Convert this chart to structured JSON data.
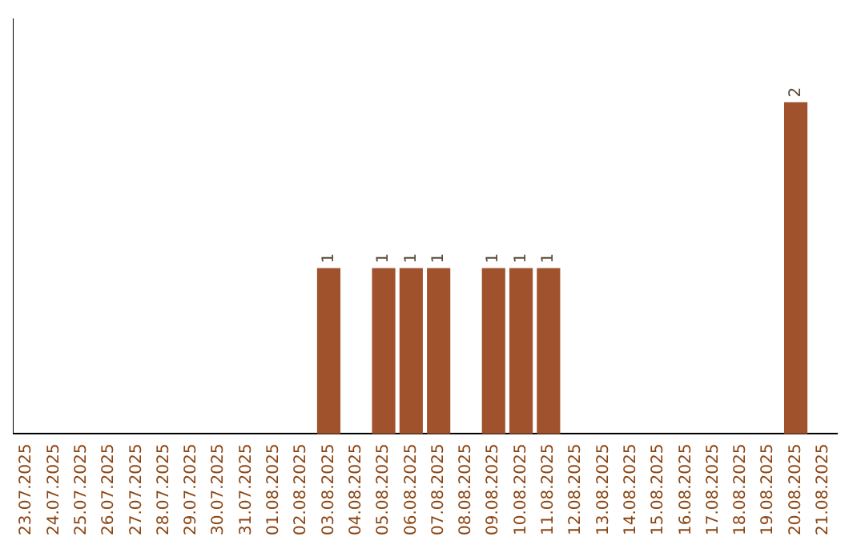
{
  "chart_data": {
    "type": "bar",
    "categories": [
      "23.07.2025",
      "24.07.2025",
      "25.07.2025",
      "26.07.2025",
      "27.07.2025",
      "28.07.2025",
      "29.07.2025",
      "30.07.2025",
      "31.07.2025",
      "01.08.2025",
      "02.08.2025",
      "03.08.2025",
      "04.08.2025",
      "05.08.2025",
      "06.08.2025",
      "07.08.2025",
      "08.08.2025",
      "09.08.2025",
      "10.08.2025",
      "11.08.2025",
      "12.08.2025",
      "13.08.2025",
      "14.08.2025",
      "15.08.2025",
      "16.08.2025",
      "17.08.2025",
      "18.08.2025",
      "19.08.2025",
      "20.08.2025",
      "21.08.2025"
    ],
    "values": [
      0,
      0,
      0,
      0,
      0,
      0,
      0,
      0,
      0,
      0,
      0,
      1,
      0,
      1,
      1,
      1,
      0,
      1,
      1,
      1,
      0,
      0,
      0,
      0,
      0,
      0,
      0,
      0,
      2,
      0
    ],
    "value_labels": [
      null,
      null,
      null,
      null,
      null,
      null,
      null,
      null,
      null,
      null,
      null,
      "1",
      null,
      "1",
      "1",
      "1",
      null,
      "1",
      "1",
      "1",
      null,
      null,
      null,
      null,
      null,
      null,
      null,
      null,
      "2",
      null
    ],
    "color": "#a0522d",
    "grid": false,
    "legend": false,
    "tick_labels": "x"
  }
}
